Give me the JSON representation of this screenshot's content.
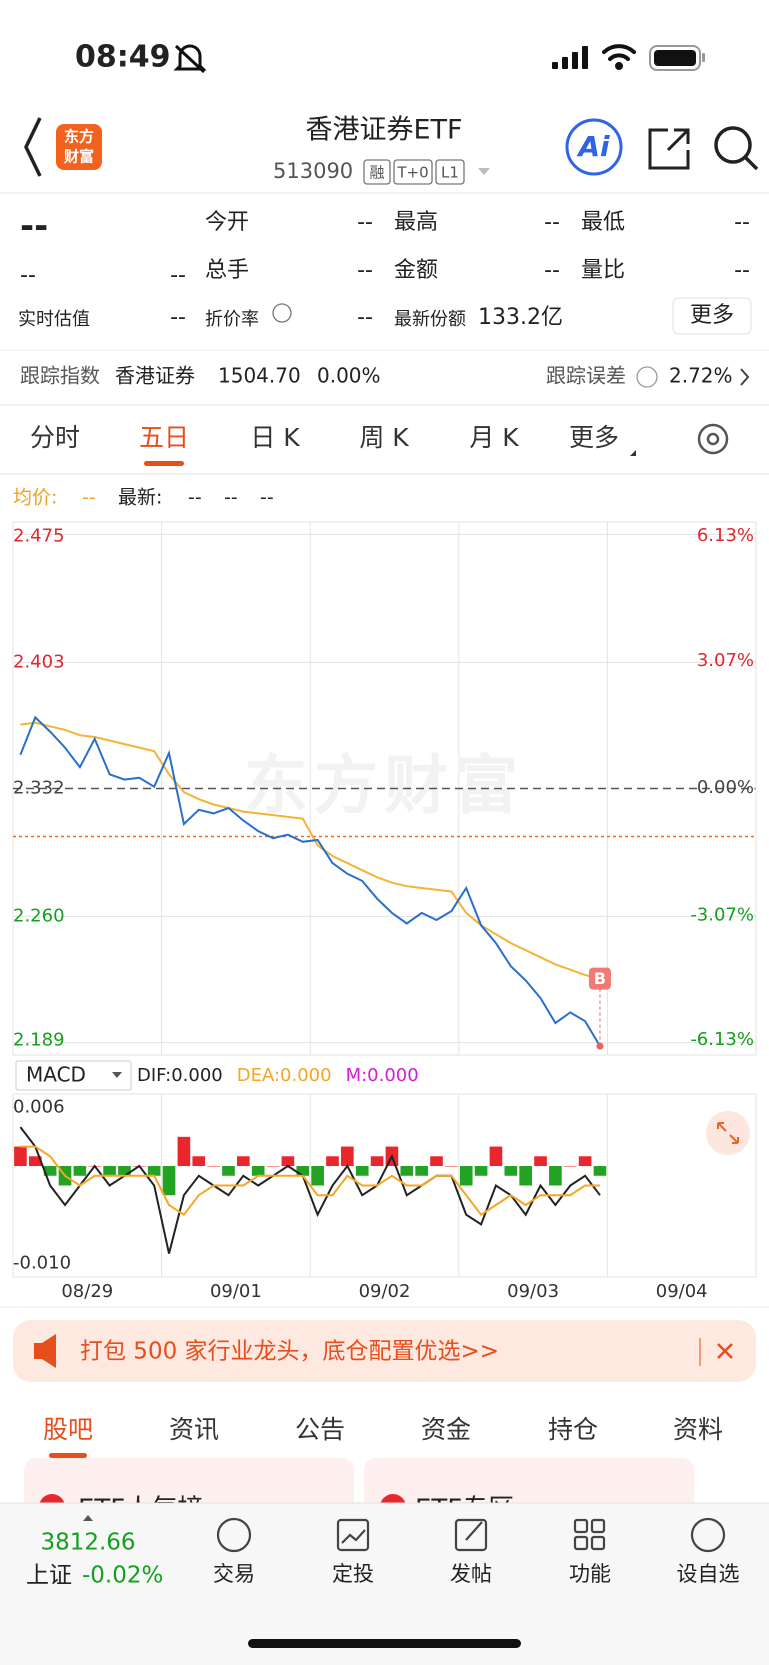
{
  "status_bar": {
    "time": "08:49"
  },
  "header": {
    "logo": [
      "东方",
      "财富"
    ],
    "title": "香港证券ETF",
    "code": "513090",
    "tags": [
      "融",
      "T+0",
      "L1"
    ],
    "ai": "Ai"
  },
  "quote": {
    "price": "--",
    "change": "--",
    "change_pct": "--",
    "fields": [
      {
        "label": "今开",
        "value": "--"
      },
      {
        "label": "最高",
        "value": "--"
      },
      {
        "label": "最低",
        "value": "--"
      },
      {
        "label": "总手",
        "value": "--"
      },
      {
        "label": "金额",
        "value": "--"
      },
      {
        "label": "量比",
        "value": "--"
      },
      {
        "label": "折价率",
        "value": "--"
      },
      {
        "label": "最新份额",
        "value": "133.2亿"
      }
    ],
    "estimate": {
      "label": "实时估值",
      "value": "--"
    },
    "more": "更多"
  },
  "tracking": {
    "label": "跟踪指数",
    "index": "香港证券",
    "value": "1504.70",
    "change": "0.00%",
    "error_label": "跟踪误差",
    "error": "2.72%"
  },
  "tabs": {
    "items": [
      "分时",
      "五日",
      "日 K",
      "周 K",
      "月 K",
      "更多"
    ],
    "active": 1
  },
  "price_info": {
    "avg_label": "均价:",
    "avg": "--",
    "latest_label": "最新:",
    "latest": [
      "--",
      "--",
      "--"
    ]
  },
  "chart_data": [
    {
      "type": "line",
      "watermark": "东方财富",
      "x": [
        0.05,
        0.15,
        0.25,
        0.35,
        0.45,
        0.55,
        0.65,
        0.75,
        0.85,
        0.95,
        1.05,
        1.15,
        1.25,
        1.35,
        1.45,
        1.55,
        1.65,
        1.75,
        1.85,
        1.95,
        2.05,
        2.15,
        2.25,
        2.35,
        2.45,
        2.55,
        2.65,
        2.75,
        2.85,
        2.95,
        3.05,
        3.15,
        3.25,
        3.35,
        3.45,
        3.55,
        3.65,
        3.75,
        3.85,
        3.95
      ],
      "xlim": [
        0,
        5
      ],
      "xticks": [
        1,
        2,
        3,
        4
      ],
      "ylim": [
        2.182,
        2.482
      ],
      "yticks": [
        {
          "value": 2.475,
          "label": "2.475"
        },
        {
          "value": 2.403,
          "label": "2.403"
        },
        {
          "value": 2.332,
          "label": "2.332"
        },
        {
          "value": 2.26,
          "label": "2.260"
        },
        {
          "value": 2.189,
          "label": "2.189"
        }
      ],
      "baseline": 2.332,
      "last_price": 2.305,
      "y2lim": [
        -6.44,
        6.42
      ],
      "y2ticks": [
        {
          "value": 6.13,
          "label": "6.13%"
        },
        {
          "value": 3.07,
          "label": "3.07%"
        },
        {
          "value": 0,
          "label": "0.00%"
        },
        {
          "value": -3.07,
          "label": "-3.07%"
        },
        {
          "value": -6.13,
          "label": "-6.13%"
        }
      ],
      "up_color": "#e0282e",
      "down_color": "#14a01e",
      "grid": true,
      "marker": "B",
      "series": [
        {
          "color": "#2a6fc9",
          "values": [
            2.351,
            2.372,
            2.364,
            2.355,
            2.344,
            2.36,
            2.34,
            2.337,
            2.338,
            2.333,
            2.352,
            2.312,
            2.32,
            2.318,
            2.321,
            2.314,
            2.308,
            2.304,
            2.306,
            2.302,
            2.303,
            2.29,
            2.284,
            2.28,
            2.27,
            2.262,
            2.256,
            2.262,
            2.258,
            2.263,
            2.276,
            2.255,
            2.245,
            2.232,
            2.224,
            2.214,
            2.2,
            2.206,
            2.201,
            2.187
          ]
        },
        {
          "color": "#f5b335",
          "values": [
            2.368,
            2.369,
            2.367,
            2.365,
            2.362,
            2.361,
            2.359,
            2.357,
            2.355,
            2.353,
            2.34,
            2.33,
            2.326,
            2.323,
            2.321,
            2.319,
            2.318,
            2.317,
            2.316,
            2.315,
            2.3,
            2.294,
            2.29,
            2.286,
            2.282,
            2.279,
            2.277,
            2.276,
            2.275,
            2.274,
            2.262,
            2.255,
            2.25,
            2.245,
            2.241,
            2.237,
            2.233,
            2.23,
            2.227,
            2.225
          ]
        }
      ]
    },
    {
      "type": "macd",
      "indicator": "MACD",
      "legend": [
        {
          "text": "DIF:0.000",
          "color": "#222222"
        },
        {
          "text": "DEA:0.000",
          "color": "#f5a623"
        },
        {
          "text": "M:0.000",
          "color": "#d61bd6"
        }
      ],
      "x": [
        0.05,
        0.15,
        0.25,
        0.35,
        0.45,
        0.55,
        0.65,
        0.75,
        0.85,
        0.95,
        1.05,
        1.15,
        1.25,
        1.35,
        1.45,
        1.55,
        1.65,
        1.75,
        1.85,
        1.95,
        2.05,
        2.15,
        2.25,
        2.35,
        2.45,
        2.55,
        2.65,
        2.75,
        2.85,
        2.95,
        3.05,
        3.15,
        3.25,
        3.35,
        3.45,
        3.55,
        3.65,
        3.75,
        3.85,
        3.95
      ],
      "xlim": [
        0,
        5
      ],
      "xticks": [
        1,
        2,
        3,
        4
      ],
      "categories": [
        "08/29",
        "09/01",
        "09/02",
        "09/03",
        "09/04"
      ],
      "ylim": [
        -0.0114,
        0.0074
      ],
      "yticks": [
        {
          "value": 0.006,
          "label": "0.006"
        },
        {
          "value": -0.01,
          "label": "-0.010"
        }
      ],
      "histogram": {
        "up_color": "#e8262b",
        "down_color": "#22a322",
        "values": [
          0.002,
          0.001,
          -0.001,
          -0.002,
          -0.001,
          0.0,
          -0.001,
          -0.001,
          0.0,
          -0.001,
          -0.003,
          0.003,
          0.001,
          0.0,
          -0.001,
          0.001,
          -0.001,
          0.0,
          0.001,
          -0.001,
          -0.002,
          0.001,
          0.002,
          -0.001,
          0.001,
          0.002,
          -0.001,
          -0.001,
          0.001,
          0.0,
          -0.002,
          -0.001,
          0.002,
          -0.001,
          -0.002,
          0.001,
          -0.002,
          0.0,
          0.001,
          -0.001
        ]
      },
      "series": [
        {
          "color": "#222222",
          "values": [
            0.004,
            0.002,
            -0.002,
            -0.004,
            -0.002,
            0.0,
            -0.002,
            -0.001,
            0.0,
            -0.002,
            -0.009,
            -0.003,
            -0.001,
            -0.002,
            -0.003,
            -0.001,
            -0.002,
            -0.001,
            0.0,
            -0.001,
            -0.005,
            -0.002,
            0.0,
            -0.003,
            -0.002,
            0.001,
            -0.003,
            -0.002,
            -0.001,
            -0.001,
            -0.005,
            -0.006,
            -0.002,
            -0.003,
            -0.005,
            -0.002,
            -0.004,
            -0.002,
            -0.001,
            -0.003
          ]
        },
        {
          "color": "#f5a623",
          "values": [
            0.002,
            0.002,
            0.001,
            -0.001,
            -0.002,
            -0.001,
            -0.001,
            -0.001,
            -0.001,
            -0.001,
            -0.004,
            -0.005,
            -0.003,
            -0.002,
            -0.002,
            -0.002,
            -0.001,
            -0.001,
            -0.001,
            -0.001,
            -0.003,
            -0.003,
            -0.001,
            -0.002,
            -0.002,
            -0.001,
            -0.002,
            -0.002,
            -0.001,
            -0.001,
            -0.003,
            -0.005,
            -0.004,
            -0.003,
            -0.004,
            -0.003,
            -0.003,
            -0.003,
            -0.002,
            -0.002
          ]
        }
      ]
    }
  ],
  "banner": {
    "text": "打包 500 家行业龙头，底仓配置优选>>"
  },
  "content_tabs": {
    "items": [
      "股吧",
      "资讯",
      "公告",
      "资金",
      "持仓",
      "资料"
    ],
    "active": 0
  },
  "cards": [
    "ETF人气榜",
    "ETF专区"
  ],
  "bottom_bar": {
    "index_value": "3812.66",
    "index_name": "上证",
    "index_change": "-0.02%",
    "actions": [
      "交易",
      "定投",
      "发帖",
      "功能",
      "设自选"
    ]
  }
}
